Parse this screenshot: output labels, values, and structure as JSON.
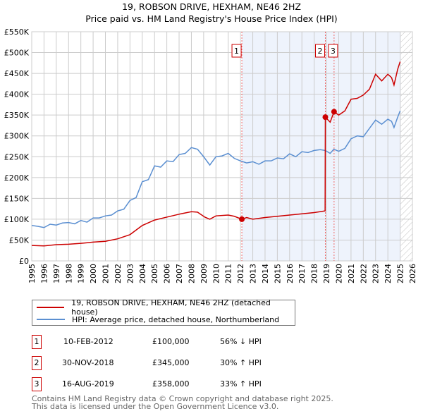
{
  "chart_data": {
    "type": "line",
    "title": "19, ROBSON DRIVE, HEXHAM, NE46 2HZ",
    "subtitle": "Price paid vs. HM Land Registry's House Price Index (HPI)",
    "xlim": [
      1995,
      2026
    ],
    "ylim": [
      0,
      550000
    ],
    "x_ticks": [
      "1995",
      "1996",
      "1997",
      "1998",
      "1999",
      "2000",
      "2001",
      "2002",
      "2003",
      "2004",
      "2005",
      "2006",
      "2007",
      "2008",
      "2009",
      "2010",
      "2011",
      "2012",
      "2013",
      "2014",
      "2015",
      "2016",
      "2017",
      "2018",
      "2019",
      "2020",
      "2021",
      "2022",
      "2023",
      "2024",
      "2025",
      "2026"
    ],
    "y_ticks": [
      {
        "v": 0,
        "label": "£0"
      },
      {
        "v": 50000,
        "label": "£50K"
      },
      {
        "v": 100000,
        "label": "£100K"
      },
      {
        "v": 150000,
        "label": "£150K"
      },
      {
        "v": 200000,
        "label": "£200K"
      },
      {
        "v": 250000,
        "label": "£250K"
      },
      {
        "v": 300000,
        "label": "£300K"
      },
      {
        "v": 350000,
        "label": "£350K"
      },
      {
        "v": 400000,
        "label": "£400K"
      },
      {
        "v": 450000,
        "label": "£450K"
      },
      {
        "v": 500000,
        "label": "£500K"
      },
      {
        "v": 550000,
        "label": "£550K"
      }
    ],
    "grid": true,
    "series": [
      {
        "name": "19, ROBSON DRIVE, HEXHAM, NE46 2HZ (detached house)",
        "color": "#cc0000",
        "points": [
          [
            1995,
            37
          ],
          [
            1996,
            36
          ],
          [
            1997,
            39
          ],
          [
            1998,
            40
          ],
          [
            1999,
            42
          ],
          [
            2000,
            45
          ],
          [
            2001,
            47
          ],
          [
            2002,
            53
          ],
          [
            2003,
            63
          ],
          [
            2004,
            85
          ],
          [
            2005,
            98
          ],
          [
            2006,
            105
          ],
          [
            2007,
            112
          ],
          [
            2008,
            118
          ],
          [
            2008.5,
            117
          ],
          [
            2009.1,
            105
          ],
          [
            2009.5,
            100
          ],
          [
            2010,
            108
          ],
          [
            2011,
            110
          ],
          [
            2011.5,
            107
          ],
          [
            2012.11,
            100
          ],
          [
            2012.5,
            104
          ],
          [
            2013,
            100
          ],
          [
            2014,
            104
          ],
          [
            2015,
            107
          ],
          [
            2016,
            110
          ],
          [
            2017,
            113
          ],
          [
            2018,
            116
          ],
          [
            2018.89,
            120
          ],
          [
            2018.91,
            345
          ],
          [
            2019.3,
            333
          ],
          [
            2019.62,
            358
          ],
          [
            2020,
            350
          ],
          [
            2020.5,
            360
          ],
          [
            2021,
            388
          ],
          [
            2021.5,
            390
          ],
          [
            2022,
            398
          ],
          [
            2022.5,
            412
          ],
          [
            2023,
            448
          ],
          [
            2023.5,
            432
          ],
          [
            2024,
            448
          ],
          [
            2024.3,
            440
          ],
          [
            2024.5,
            422
          ],
          [
            2024.8,
            460
          ],
          [
            2025,
            478
          ]
        ]
      },
      {
        "name": "HPI: Average price, detached house, Northumberland",
        "color": "#5b8fd1",
        "points": [
          [
            1995,
            85
          ],
          [
            1995.5,
            83
          ],
          [
            1996,
            80
          ],
          [
            1996.5,
            88
          ],
          [
            1997,
            86
          ],
          [
            1997.5,
            91
          ],
          [
            1998,
            92
          ],
          [
            1998.5,
            89
          ],
          [
            1999,
            97
          ],
          [
            1999.5,
            93
          ],
          [
            2000,
            103
          ],
          [
            2000.5,
            103
          ],
          [
            2001,
            108
          ],
          [
            2001.5,
            110
          ],
          [
            2002,
            120
          ],
          [
            2002.5,
            124
          ],
          [
            2003,
            145
          ],
          [
            2003.5,
            152
          ],
          [
            2004,
            190
          ],
          [
            2004.5,
            195
          ],
          [
            2005,
            228
          ],
          [
            2005.5,
            225
          ],
          [
            2006,
            240
          ],
          [
            2006.5,
            238
          ],
          [
            2007,
            255
          ],
          [
            2007.5,
            258
          ],
          [
            2008,
            272
          ],
          [
            2008.5,
            268
          ],
          [
            2009,
            250
          ],
          [
            2009.5,
            230
          ],
          [
            2010,
            250
          ],
          [
            2010.5,
            252
          ],
          [
            2011,
            258
          ],
          [
            2011.5,
            246
          ],
          [
            2012,
            240
          ],
          [
            2012.5,
            235
          ],
          [
            2013,
            238
          ],
          [
            2013.5,
            232
          ],
          [
            2014,
            240
          ],
          [
            2014.5,
            240
          ],
          [
            2015,
            247
          ],
          [
            2015.5,
            245
          ],
          [
            2016,
            257
          ],
          [
            2016.5,
            250
          ],
          [
            2017,
            262
          ],
          [
            2017.5,
            260
          ],
          [
            2018,
            265
          ],
          [
            2018.5,
            267
          ],
          [
            2018.9,
            265
          ],
          [
            2019.3,
            258
          ],
          [
            2019.6,
            268
          ],
          [
            2020,
            263
          ],
          [
            2020.5,
            270
          ],
          [
            2021,
            293
          ],
          [
            2021.5,
            300
          ],
          [
            2022,
            298
          ],
          [
            2022.5,
            318
          ],
          [
            2023,
            338
          ],
          [
            2023.5,
            328
          ],
          [
            2024,
            340
          ],
          [
            2024.3,
            335
          ],
          [
            2024.5,
            320
          ],
          [
            2024.8,
            345
          ],
          [
            2025,
            360
          ]
        ]
      }
    ],
    "y_unit": "thousands GBP",
    "sales": [
      {
        "num": "1",
        "date": "10-FEB-2012",
        "x": 2012.11,
        "price": "£100,000",
        "value": 100,
        "hpi": "56% ↓ HPI"
      },
      {
        "num": "2",
        "date": "30-NOV-2018",
        "x": 2018.91,
        "price": "£345,000",
        "value": 345,
        "hpi": "30% ↑ HPI"
      },
      {
        "num": "3",
        "date": "16-AUG-2019",
        "x": 2019.62,
        "price": "£358,000",
        "value": 358,
        "hpi": "33% ↑ HPI"
      }
    ],
    "shaded_from": 2012.11,
    "hatched_from": 2025.05
  },
  "footer": [
    "Contains HM Land Registry data © Crown copyright and database right 2025.",
    "This data is licensed under the Open Government Licence v3.0."
  ]
}
